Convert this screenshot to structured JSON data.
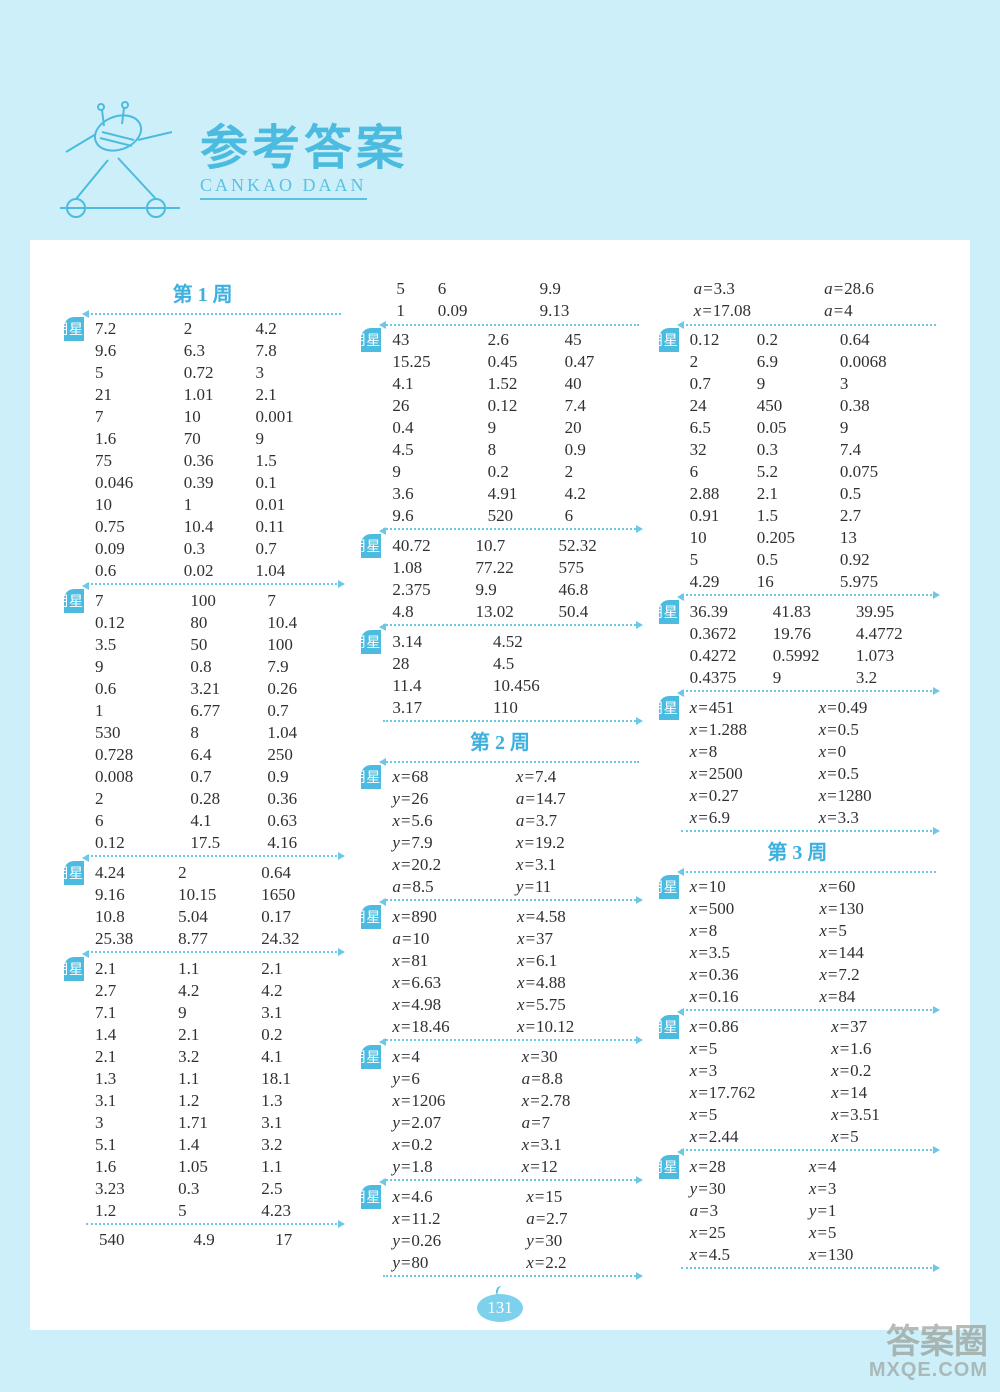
{
  "header": {
    "title": "参考答案",
    "subtitle": "CANKAO  DAAN"
  },
  "pageNumber": "131",
  "watermark": {
    "line1": "答案圈",
    "line2": "MXQE.COM"
  },
  "weeks": {
    "w1": "第 1 周",
    "w2": "第 2 周",
    "w3": "第 3 周"
  },
  "days": {
    "d1": "星期一",
    "d2": "星期二",
    "d3": "星期三",
    "d4": "星期四",
    "d5": "星期五",
    "d6": "星期六",
    "d7": "星期日"
  },
  "col1": {
    "d1": [
      [
        "7.2",
        "2",
        "4.2"
      ],
      [
        "9.6",
        "6.3",
        "7.8"
      ],
      [
        "5",
        "0.72",
        "3"
      ],
      [
        "21",
        "1.01",
        "2.1"
      ],
      [
        "7",
        "10",
        "0.001"
      ],
      [
        "1.6",
        "70",
        "9"
      ],
      [
        "75",
        "0.36",
        "1.5"
      ],
      [
        "0.046",
        "0.39",
        "0.1"
      ],
      [
        "10",
        "1",
        "0.01"
      ],
      [
        "0.75",
        "10.4",
        "0.11"
      ],
      [
        "0.09",
        "0.3",
        "0.7"
      ],
      [
        "0.6",
        "0.02",
        "1.04"
      ]
    ],
    "d2": [
      [
        "7",
        "100",
        "7"
      ],
      [
        "0.12",
        "80",
        "10.4"
      ],
      [
        "3.5",
        "50",
        "100"
      ],
      [
        "9",
        "0.8",
        "7.9"
      ],
      [
        "0.6",
        "3.21",
        "0.26"
      ],
      [
        "1",
        "6.77",
        "0.7"
      ],
      [
        "530",
        "8",
        "1.04"
      ],
      [
        "0.728",
        "6.4",
        "250"
      ],
      [
        "0.008",
        "0.7",
        "0.9"
      ],
      [
        "2",
        "0.28",
        "0.36"
      ],
      [
        "6",
        "4.1",
        "0.63"
      ],
      [
        "0.12",
        "17.5",
        "4.16"
      ]
    ],
    "d3": [
      [
        "4.24",
        "2",
        "0.64"
      ],
      [
        "9.16",
        "10.15",
        "1650"
      ],
      [
        "10.8",
        "5.04",
        "0.17"
      ],
      [
        "25.38",
        "8.77",
        "24.32"
      ]
    ],
    "d4": [
      [
        "2.1",
        "1.1",
        "2.1"
      ],
      [
        "2.7",
        "4.2",
        "4.2"
      ],
      [
        "7.1",
        "9",
        "3.1"
      ],
      [
        "1.4",
        "2.1",
        "0.2"
      ],
      [
        "2.1",
        "3.2",
        "4.1"
      ],
      [
        "1.3",
        "1.1",
        "18.1"
      ],
      [
        "3.1",
        "1.2",
        "1.3"
      ],
      [
        "3",
        "1.71",
        "3.1"
      ],
      [
        "5.1",
        "1.4",
        "3.2"
      ],
      [
        "1.6",
        "1.05",
        "1.1"
      ],
      [
        "3.23",
        "0.3",
        "2.5"
      ],
      [
        "1.2",
        "5",
        "4.23"
      ]
    ],
    "extra": [
      [
        "540",
        "4.9",
        "17"
      ]
    ]
  },
  "col2": {
    "d5top": [
      [
        "5",
        "6",
        "9.9"
      ],
      [
        "1",
        "0.09",
        "9.13"
      ]
    ],
    "d5": [
      [
        "43",
        "2.6",
        "45"
      ],
      [
        "15.25",
        "0.45",
        "0.47"
      ],
      [
        "4.1",
        "1.52",
        "40"
      ],
      [
        "26",
        "0.12",
        "7.4"
      ],
      [
        "0.4",
        "9",
        "20"
      ],
      [
        "4.5",
        "8",
        "0.9"
      ],
      [
        "9",
        "0.2",
        "2"
      ],
      [
        "3.6",
        "4.91",
        "4.2"
      ],
      [
        "9.6",
        "520",
        "6"
      ]
    ],
    "d6": [
      [
        "40.72",
        "10.7",
        "52.32"
      ],
      [
        "1.08",
        "77.22",
        "575"
      ],
      [
        "2.375",
        "9.9",
        "46.8"
      ],
      [
        "4.8",
        "13.02",
        "50.4"
      ]
    ],
    "d7": [
      [
        "3.14",
        "4.52"
      ],
      [
        "28",
        "4.5"
      ],
      [
        "11.4",
        "10.456"
      ],
      [
        "3.17",
        "110"
      ]
    ],
    "w2d1": [
      [
        "x=68",
        "x=7.4"
      ],
      [
        "y=26",
        "a=14.7"
      ],
      [
        "x=5.6",
        "a=3.7"
      ],
      [
        "y=7.9",
        "x=19.2"
      ],
      [
        "x=20.2",
        "x=3.1"
      ],
      [
        "a=8.5",
        "y=11"
      ]
    ],
    "w2d2": [
      [
        "x=890",
        "x=4.58"
      ],
      [
        "a=10",
        "x=37"
      ],
      [
        "x=81",
        "x=6.1"
      ],
      [
        "x=6.63",
        "x=4.88"
      ],
      [
        "x=4.98",
        "x=5.75"
      ],
      [
        "x=18.46",
        "x=10.12"
      ]
    ],
    "w2d3": [
      [
        "x=4",
        "x=30"
      ],
      [
        "y=6",
        "a=8.8"
      ],
      [
        "x=1206",
        "x=2.78"
      ],
      [
        "y=2.07",
        "a=7"
      ],
      [
        "x=0.2",
        "x=3.1"
      ],
      [
        "y=1.8",
        "x=12"
      ]
    ],
    "w2d4": [
      [
        "x=4.6",
        "x=15"
      ],
      [
        "x=11.2",
        "a=2.7"
      ],
      [
        "y=0.26",
        "y=30"
      ],
      [
        "y=80",
        "x=2.2"
      ]
    ]
  },
  "col3": {
    "top": [
      [
        "a=3.3",
        "a=28.6"
      ],
      [
        "x=17.08",
        "a=4"
      ]
    ],
    "d5": [
      [
        "0.12",
        "0.2",
        "0.64"
      ],
      [
        "2",
        "6.9",
        "0.0068"
      ],
      [
        "0.7",
        "9",
        "3"
      ],
      [
        "24",
        "450",
        "0.38"
      ],
      [
        "6.5",
        "0.05",
        "9"
      ],
      [
        "32",
        "0.3",
        "7.4"
      ],
      [
        "6",
        "5.2",
        "0.075"
      ],
      [
        "2.88",
        "2.1",
        "0.5"
      ],
      [
        "0.91",
        "1.5",
        "2.7"
      ],
      [
        "10",
        "0.205",
        "13"
      ],
      [
        "5",
        "0.5",
        "0.92"
      ],
      [
        "4.29",
        "16",
        "5.975"
      ]
    ],
    "d6": [
      [
        "36.39",
        "41.83",
        "39.95"
      ],
      [
        "0.3672",
        "19.76",
        "4.4772"
      ],
      [
        "0.4272",
        "0.5992",
        "1.073"
      ],
      [
        "0.4375",
        "9",
        "3.2"
      ]
    ],
    "d7": [
      [
        "x=451",
        "x=0.49"
      ],
      [
        "x=1.288",
        "x=0.5"
      ],
      [
        "x=8",
        "x=0"
      ],
      [
        "x=2500",
        "x=0.5"
      ],
      [
        "x=0.27",
        "x=1280"
      ],
      [
        "x=6.9",
        "x=3.3"
      ]
    ],
    "w3d1": [
      [
        "x=10",
        "x=60"
      ],
      [
        "x=500",
        "x=130"
      ],
      [
        "x=8",
        "x=5"
      ],
      [
        "x=3.5",
        "x=144"
      ],
      [
        "x=0.36",
        "x=7.2"
      ],
      [
        "x=0.16",
        "x=84"
      ]
    ],
    "w3d2": [
      [
        "x=0.86",
        "x=37"
      ],
      [
        "x=5",
        "x=1.6"
      ],
      [
        "x=3",
        "x=0.2"
      ],
      [
        "x=17.762",
        "x=14"
      ],
      [
        "x=5",
        "x=3.51"
      ],
      [
        "x=2.44",
        "x=5"
      ]
    ],
    "w3d3": [
      [
        "x=28",
        "x=4"
      ],
      [
        "y=30",
        "x=3"
      ],
      [
        "a=3",
        "y=1"
      ],
      [
        "x=25",
        "x=5"
      ],
      [
        "x=4.5",
        "x=130"
      ]
    ]
  }
}
